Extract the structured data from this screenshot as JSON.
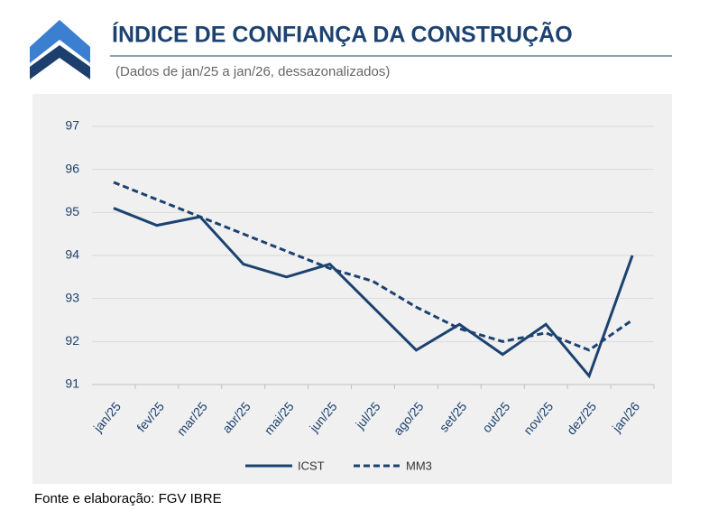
{
  "chart_data": {
    "type": "line",
    "title": "ÍNDICE DE CONFIANÇA DA CONSTRUÇÃO",
    "subtitle": "(Dados de jan/25 a jan/26, dessazonalizados)",
    "source": "Fonte e elaboração: FGV IBRE",
    "categories": [
      "jan/25",
      "fev/25",
      "mar/25",
      "abr/25",
      "mai/25",
      "jun/25",
      "jul/25",
      "ago/25",
      "set/25",
      "out/25",
      "nov/25",
      "dez/25",
      "jan/26"
    ],
    "series": [
      {
        "name": "ICST",
        "color": "#1c4270",
        "line_style": "solid",
        "values": [
          95.1,
          94.7,
          94.9,
          93.8,
          93.5,
          93.8,
          92.8,
          91.8,
          92.4,
          91.7,
          92.4,
          91.2,
          94.0
        ]
      },
      {
        "name": "MM3",
        "color": "#1c4270",
        "line_style": "dashed",
        "values": [
          95.7,
          95.3,
          94.9,
          94.5,
          94.1,
          93.7,
          93.4,
          92.8,
          92.3,
          92.0,
          92.2,
          91.8,
          92.5
        ]
      }
    ],
    "ylim": [
      91,
      97
    ],
    "yticks": [
      91,
      92,
      93,
      94,
      95,
      96,
      97
    ],
    "grid": true,
    "legend": "bottom"
  }
}
